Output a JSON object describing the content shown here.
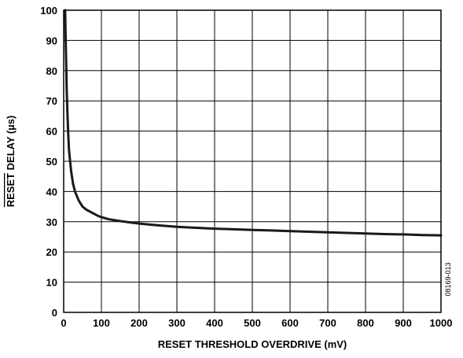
{
  "chart_data": {
    "type": "line",
    "xlabel": "RESET THRESHOLD OVERDRIVE (mV)",
    "ylabel_overlined": "RESET",
    "ylabel_rest": " DELAY (µs)",
    "xlim": [
      0,
      1000
    ],
    "ylim": [
      0,
      100
    ],
    "x_ticks": [
      0,
      100,
      200,
      300,
      400,
      500,
      600,
      700,
      800,
      900,
      1000
    ],
    "y_ticks": [
      0,
      10,
      20,
      30,
      40,
      50,
      60,
      70,
      80,
      90,
      100
    ],
    "grid": true,
    "figure_id": "08169-013",
    "series": [
      {
        "color": "#1a1a1a",
        "x": [
          4,
          5,
          6,
          7,
          8,
          10,
          12,
          14,
          17,
          20,
          25,
          30,
          40,
          50,
          60,
          75,
          90,
          100,
          120,
          150,
          175,
          200,
          250,
          300,
          350,
          400,
          450,
          500,
          550,
          600,
          650,
          700,
          750,
          800,
          850,
          900,
          950,
          1000
        ],
        "y": [
          100,
          92,
          86,
          80,
          74,
          66,
          59,
          54,
          50,
          46.5,
          42.5,
          40,
          37,
          35,
          34,
          33,
          32,
          31.5,
          30.8,
          30.2,
          29.8,
          29.4,
          28.8,
          28.3,
          28,
          27.7,
          27.5,
          27.3,
          27.1,
          26.9,
          26.7,
          26.5,
          26.3,
          26.1,
          25.9,
          25.8,
          25.6,
          25.5
        ]
      }
    ]
  }
}
